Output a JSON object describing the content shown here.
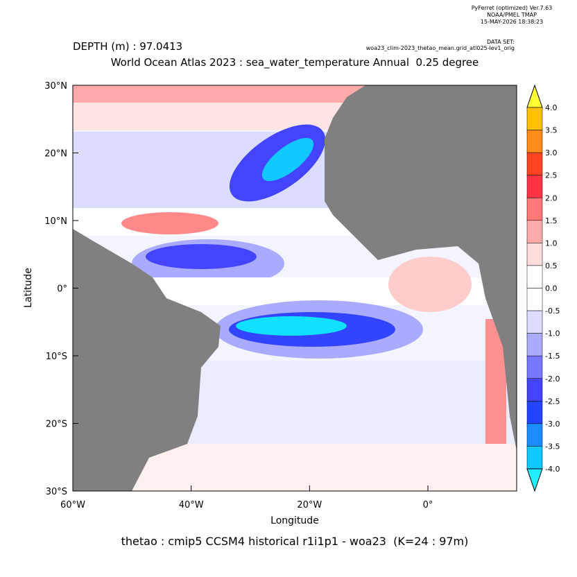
{
  "header": {
    "software": "PyFerret (optimized) Ver.7.63",
    "org": "NOAA/PMEL TMAP",
    "timestamp": "15-MAY-2026 18:38:23",
    "dataset_label": "DATA SET:",
    "dataset": "woa23_clim-2023_thetao_mean.grid_atl025-lev1_orig",
    "depth": "DEPTH (m) : 97.0413"
  },
  "chart_data": {
    "type": "contour",
    "title": "World Ocean Atlas 2023 : sea_water_temperature Annual  0.25 degree",
    "xlabel": "Longitude",
    "ylabel": "Latitude",
    "footer": "thetao : cmip5 CCSM4 historical r1i1p1 - woa23  (K=24 : 97m)",
    "xlim": [
      -60,
      15
    ],
    "ylim": [
      -30,
      30
    ],
    "xticks": [
      {
        "value": -60,
        "label": "60°W"
      },
      {
        "value": -40,
        "label": "40°W"
      },
      {
        "value": -20,
        "label": "20°W"
      },
      {
        "value": 0,
        "label": "0°"
      }
    ],
    "yticks": [
      {
        "value": 30,
        "label": "30°N"
      },
      {
        "value": 20,
        "label": "20°N"
      },
      {
        "value": 10,
        "label": "10°N"
      },
      {
        "value": 0,
        "label": "0°"
      },
      {
        "value": -10,
        "label": "10°S"
      },
      {
        "value": -20,
        "label": "20°S"
      },
      {
        "value": -30,
        "label": "30°S"
      }
    ],
    "land_color": "#808080",
    "colorbar": {
      "levels": [
        {
          "value": 4,
          "label": "4.0"
        },
        {
          "value": 3.5,
          "label": "3.5"
        },
        {
          "value": 3,
          "label": "3.0"
        },
        {
          "value": 2.5,
          "label": "2.5"
        },
        {
          "value": 2,
          "label": "2.0"
        },
        {
          "value": 1.5,
          "label": "1.5"
        },
        {
          "value": 1,
          "label": "1.0"
        },
        {
          "value": 0.5,
          "label": "0.5"
        },
        {
          "value": 0,
          "label": "0.0"
        },
        {
          "value": -0.5,
          "label": "-0.5"
        },
        {
          "value": -1,
          "label": "-1.0"
        },
        {
          "value": -1.5,
          "label": "-1.5"
        },
        {
          "value": -2,
          "label": "-2.0"
        },
        {
          "value": -2.5,
          "label": "-2.5"
        },
        {
          "value": -3,
          "label": "-3.0"
        },
        {
          "value": -3.5,
          "label": "-3.5"
        },
        {
          "value": -4,
          "label": "-4.0"
        }
      ],
      "colors": [
        "#ffff33",
        "#ffc000",
        "#ff8c1a",
        "#ff4422",
        "#ff3344",
        "#ff7777",
        "#ffaaaa",
        "#ffdddd",
        "#ffffff",
        "#ffffff",
        "#dcdcff",
        "#aaaaff",
        "#7777ff",
        "#4444ff",
        "#2244ff",
        "#1a8cff",
        "#11c8ff",
        "#22eeff"
      ]
    }
  }
}
